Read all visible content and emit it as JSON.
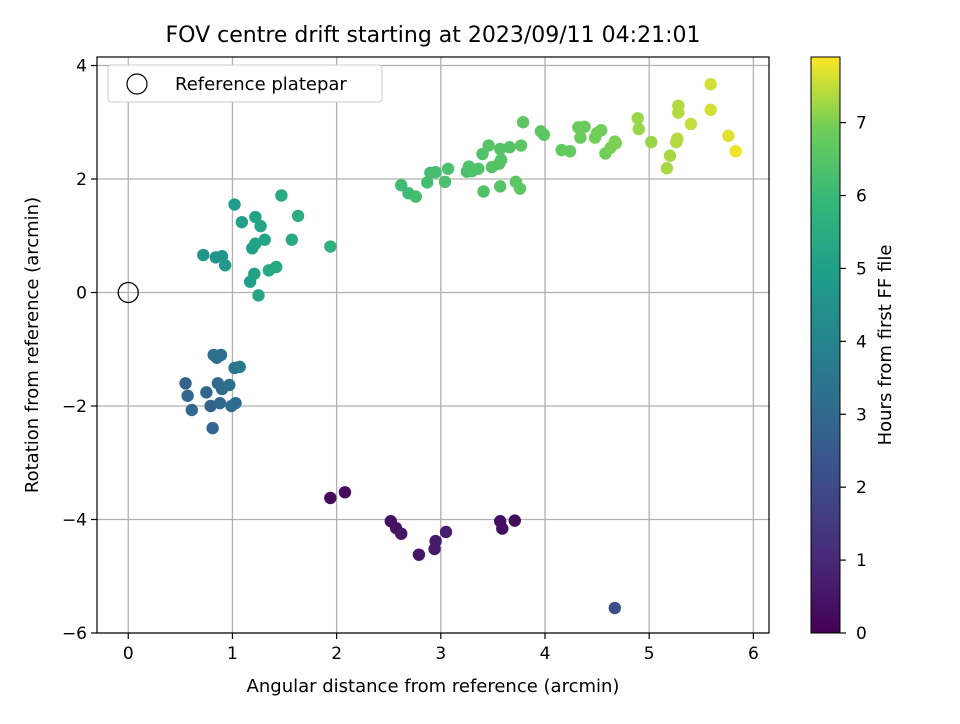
{
  "chart_data": {
    "type": "scatter",
    "title": "FOV centre drift starting at 2023/09/11 04:21:01",
    "xlabel": "Angular distance from reference (arcmin)",
    "ylabel": "Rotation from reference (arcmin)",
    "xlim": [
      -0.3,
      6.15
    ],
    "ylim": [
      -6.0,
      4.15
    ],
    "xticks": [
      0,
      1,
      2,
      3,
      4,
      5,
      6
    ],
    "xtick_labels": [
      "0",
      "1",
      "2",
      "3",
      "4",
      "5",
      "6"
    ],
    "yticks": [
      -6,
      -4,
      -2,
      0,
      2,
      4
    ],
    "ytick_labels": [
      "−6",
      "−4",
      "−2",
      "0",
      "2",
      "4"
    ],
    "grid": true,
    "legend": {
      "placement": "top-left",
      "entries": [
        "Reference platepar"
      ]
    },
    "reference_point": {
      "x": 0,
      "y": 0
    },
    "colorbar": {
      "label": "Hours from first FF file",
      "range": [
        0,
        7.9
      ],
      "ticks": [
        0,
        1,
        2,
        3,
        4,
        5,
        6,
        7
      ],
      "tick_labels": [
        "0",
        "1",
        "2",
        "3",
        "4",
        "5",
        "6",
        "7"
      ],
      "colormap": "viridis"
    },
    "series": [
      {
        "points": [
          [
            1.94,
            -3.62,
            0.2
          ],
          [
            2.08,
            -3.52,
            0.3
          ],
          [
            2.52,
            -4.03,
            0.4
          ],
          [
            2.57,
            -4.15,
            0.45
          ],
          [
            2.62,
            -4.25,
            0.5
          ],
          [
            2.79,
            -4.62,
            0.55
          ],
          [
            2.94,
            -4.52,
            0.6
          ],
          [
            2.95,
            -4.38,
            0.65
          ],
          [
            3.05,
            -4.22,
            0.7
          ],
          [
            3.57,
            -4.03,
            0.3
          ],
          [
            3.59,
            -4.16,
            0.35
          ],
          [
            3.71,
            -4.02,
            0.25
          ],
          [
            4.67,
            -5.56,
            2.2
          ],
          [
            0.55,
            -1.6,
            2.8
          ],
          [
            0.57,
            -1.82,
            2.9
          ],
          [
            0.61,
            -2.07,
            3.0
          ],
          [
            0.75,
            -1.76,
            2.9
          ],
          [
            0.79,
            -2.0,
            2.8
          ],
          [
            0.81,
            -2.39,
            2.9
          ],
          [
            0.82,
            -1.1,
            3.2
          ],
          [
            0.85,
            -1.15,
            3.3
          ],
          [
            0.86,
            -1.6,
            3.1
          ],
          [
            0.88,
            -1.95,
            3.0
          ],
          [
            0.89,
            -1.1,
            3.3
          ],
          [
            0.9,
            -1.7,
            3.1
          ],
          [
            0.97,
            -1.63,
            3.2
          ],
          [
            0.99,
            -2.0,
            3.1
          ],
          [
            1.03,
            -1.95,
            3.2
          ],
          [
            1.02,
            -1.33,
            3.5
          ],
          [
            1.07,
            -1.31,
            3.6
          ],
          [
            0.72,
            0.66,
            4.6
          ],
          [
            0.84,
            0.62,
            4.7
          ],
          [
            0.9,
            0.64,
            4.7
          ],
          [
            0.93,
            0.48,
            4.8
          ],
          [
            1.02,
            1.55,
            4.9
          ],
          [
            1.09,
            1.24,
            5.0
          ],
          [
            1.17,
            0.19,
            5.0
          ],
          [
            1.19,
            0.78,
            5.0
          ],
          [
            1.21,
            0.33,
            5.1
          ],
          [
            1.22,
            0.86,
            5.1
          ],
          [
            1.22,
            1.33,
            5.1
          ],
          [
            1.25,
            -0.05,
            5.2
          ],
          [
            1.27,
            1.17,
            5.2
          ],
          [
            1.31,
            0.93,
            5.2
          ],
          [
            1.35,
            0.39,
            5.3
          ],
          [
            1.42,
            0.45,
            5.3
          ],
          [
            1.47,
            1.71,
            5.4
          ],
          [
            1.57,
            0.93,
            5.4
          ],
          [
            1.63,
            1.35,
            5.5
          ],
          [
            1.94,
            0.81,
            5.7
          ],
          [
            2.62,
            1.89,
            6.1
          ],
          [
            2.69,
            1.75,
            6.1
          ],
          [
            2.76,
            1.69,
            6.2
          ],
          [
            2.87,
            1.94,
            6.2
          ],
          [
            2.9,
            2.11,
            6.2
          ],
          [
            2.95,
            2.12,
            6.2
          ],
          [
            3.04,
            1.95,
            6.3
          ],
          [
            3.07,
            2.18,
            6.3
          ],
          [
            3.25,
            2.13,
            6.3
          ],
          [
            3.27,
            2.22,
            6.4
          ],
          [
            3.3,
            2.14,
            6.4
          ],
          [
            3.36,
            2.18,
            6.4
          ],
          [
            3.4,
            2.44,
            6.4
          ],
          [
            3.41,
            1.78,
            6.4
          ],
          [
            3.46,
            2.59,
            6.5
          ],
          [
            3.49,
            2.21,
            6.5
          ],
          [
            3.56,
            2.27,
            6.5
          ],
          [
            3.57,
            1.87,
            6.5
          ],
          [
            3.57,
            2.53,
            6.5
          ],
          [
            3.58,
            2.34,
            6.5
          ],
          [
            3.66,
            2.56,
            6.5
          ],
          [
            3.72,
            1.95,
            6.6
          ],
          [
            3.76,
            1.83,
            6.6
          ],
          [
            3.77,
            2.59,
            6.6
          ],
          [
            3.79,
            3.0,
            6.6
          ],
          [
            3.96,
            2.84,
            6.6
          ],
          [
            3.99,
            2.78,
            6.6
          ],
          [
            4.16,
            2.51,
            6.7
          ],
          [
            4.24,
            2.49,
            6.7
          ],
          [
            4.32,
            2.91,
            6.8
          ],
          [
            4.34,
            2.73,
            6.8
          ],
          [
            4.38,
            2.92,
            6.8
          ],
          [
            4.48,
            2.73,
            6.9
          ],
          [
            4.5,
            2.81,
            6.9
          ],
          [
            4.54,
            2.86,
            6.9
          ],
          [
            4.58,
            2.45,
            6.9
          ],
          [
            4.63,
            2.55,
            7.0
          ],
          [
            4.67,
            2.66,
            7.0
          ],
          [
            4.68,
            2.63,
            7.0
          ],
          [
            4.89,
            3.07,
            7.2
          ],
          [
            4.9,
            2.88,
            7.2
          ],
          [
            5.02,
            2.65,
            7.2
          ],
          [
            5.17,
            2.19,
            7.3
          ],
          [
            5.2,
            2.41,
            7.3
          ],
          [
            5.26,
            2.65,
            7.4
          ],
          [
            5.27,
            2.71,
            7.4
          ],
          [
            5.28,
            3.29,
            7.4
          ],
          [
            5.28,
            3.17,
            7.4
          ],
          [
            5.4,
            2.97,
            7.5
          ],
          [
            5.59,
            3.67,
            7.6
          ],
          [
            5.59,
            3.22,
            7.6
          ],
          [
            5.76,
            2.76,
            7.7
          ],
          [
            5.83,
            2.49,
            7.8
          ]
        ]
      }
    ]
  }
}
